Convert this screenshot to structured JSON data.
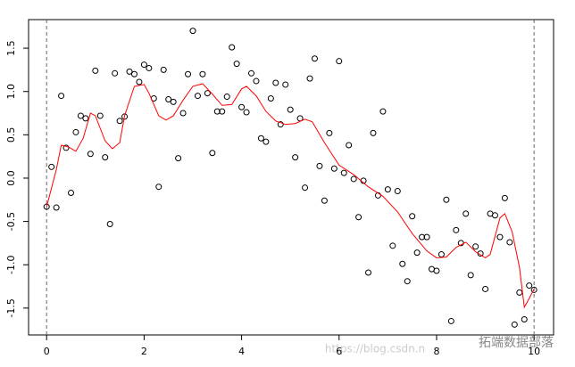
{
  "chart_data": {
    "type": "scatter",
    "xlim": [
      -0.37,
      10.4
    ],
    "ylim": [
      -1.81,
      1.83
    ],
    "xticks": [
      0,
      2,
      4,
      6,
      8,
      10
    ],
    "yticks": [
      {
        "value": -1.5,
        "label": "-1.5"
      },
      {
        "value": -1,
        "label": "-1.0"
      },
      -0.5,
      {
        "value": 0,
        "label": "0.0"
      },
      0.5,
      {
        "value": 1,
        "label": "1.0"
      },
      1.5
    ],
    "vlines": [
      0,
      10
    ],
    "series": [
      {
        "type": "scatter",
        "color": "#000000",
        "x": [
          0,
          0.1,
          0.2,
          0.3,
          0.4,
          0.5,
          0.6,
          0.7,
          0.8,
          0.9,
          1,
          1.1,
          1.2,
          1.3,
          1.4,
          1.5,
          1.6,
          1.7,
          1.8,
          1.9,
          2,
          2.1,
          2.2,
          2.3,
          2.4,
          2.5,
          2.6,
          2.7,
          2.8,
          2.9,
          3,
          3.1,
          3.2,
          3.3,
          3.4,
          3.5,
          3.6,
          3.7,
          3.8,
          3.9,
          4,
          4.1,
          4.2,
          4.3,
          4.4,
          4.5,
          4.6,
          4.7,
          4.8,
          4.9,
          5,
          5.1,
          5.2,
          5.3,
          5.4,
          5.5,
          5.6,
          5.7,
          5.8,
          5.9,
          6,
          6.1,
          6.2,
          6.3,
          6.4,
          6.5,
          6.6,
          6.7,
          6.8,
          6.9,
          7,
          7.1,
          7.2,
          7.3,
          7.4,
          7.5,
          7.6,
          7.7,
          7.8,
          7.9,
          8,
          8.1,
          8.2,
          8.3,
          8.4,
          8.5,
          8.6,
          8.7,
          8.8,
          8.9,
          9,
          9.1,
          9.2,
          9.3,
          9.4,
          9.5,
          9.6,
          9.7,
          9.8,
          9.9,
          10
        ],
        "values": [
          -0.33,
          0.13,
          -0.34,
          0.95,
          0.35,
          -0.17,
          0.53,
          0.72,
          0.69,
          0.28,
          1.24,
          0.72,
          0.24,
          -0.53,
          1.21,
          0.66,
          0.71,
          1.23,
          1.2,
          1.11,
          1.31,
          1.27,
          0.92,
          -0.1,
          1.25,
          0.91,
          0.88,
          0.23,
          0.75,
          1.2,
          1.7,
          0.95,
          1.2,
          0.98,
          0.29,
          0.77,
          0.77,
          0.94,
          1.51,
          1.32,
          0.82,
          0.76,
          1.21,
          1.12,
          0.46,
          0.42,
          0.92,
          1.1,
          0.62,
          1.08,
          0.79,
          0.24,
          0.69,
          -0.11,
          1.15,
          1.38,
          0.14,
          -0.26,
          0.52,
          0.11,
          1.35,
          0.06,
          0.38,
          -0.01,
          -0.45,
          -0.03,
          -1.09,
          0.52,
          -0.2,
          0.77,
          -0.13,
          -0.78,
          -0.15,
          -0.99,
          -1.19,
          -0.44,
          -0.86,
          -0.68,
          -0.68,
          -1.05,
          -1.07,
          -0.88,
          -0.25,
          -1.65,
          -0.6,
          -0.75,
          -0.41,
          -1.12,
          -0.79,
          -0.87,
          -1.28,
          -0.41,
          -0.43,
          -0.68,
          -0.23,
          -0.74,
          -1.69,
          -1.32,
          -1.63,
          -1.24,
          -1.29
        ]
      },
      {
        "type": "line",
        "color": "#ff0000",
        "x": [
          0,
          0.2,
          0.3,
          0.45,
          0.6,
          0.75,
          0.9,
          1,
          1.2,
          1.35,
          1.5,
          1.6,
          1.8,
          2,
          2.1,
          2.3,
          2.45,
          2.6,
          2.8,
          3,
          3.2,
          3.4,
          3.6,
          3.8,
          4,
          4.1,
          4.3,
          4.5,
          4.7,
          4.9,
          5.1,
          5.3,
          5.45,
          5.7,
          6,
          6.3,
          6.6,
          6.9,
          7.2,
          7.5,
          7.8,
          8,
          8.2,
          8.4,
          8.6,
          8.8,
          9,
          9.1,
          9.3,
          9.4,
          9.55,
          9.7,
          9.8,
          9.9,
          10
        ],
        "values": [
          -0.33,
          0.1,
          0.38,
          0.36,
          0.31,
          0.46,
          0.75,
          0.72,
          0.43,
          0.34,
          0.41,
          0.72,
          1.06,
          1.08,
          0.98,
          0.72,
          0.67,
          0.72,
          0.9,
          1.06,
          1.09,
          0.97,
          0.84,
          0.85,
          1.03,
          1.06,
          0.95,
          0.77,
          0.66,
          0.62,
          0.63,
          0.68,
          0.65,
          0.41,
          0.15,
          0.04,
          -0.1,
          -0.21,
          -0.39,
          -0.64,
          -0.84,
          -0.92,
          -0.91,
          -0.8,
          -0.74,
          -0.85,
          -0.92,
          -0.88,
          -0.46,
          -0.41,
          -0.62,
          -1.03,
          -1.49,
          -1.39,
          -1.28
        ]
      }
    ],
    "watermark": [
      "https://blog.csdn.n",
      "拓端数据部落"
    ]
  }
}
